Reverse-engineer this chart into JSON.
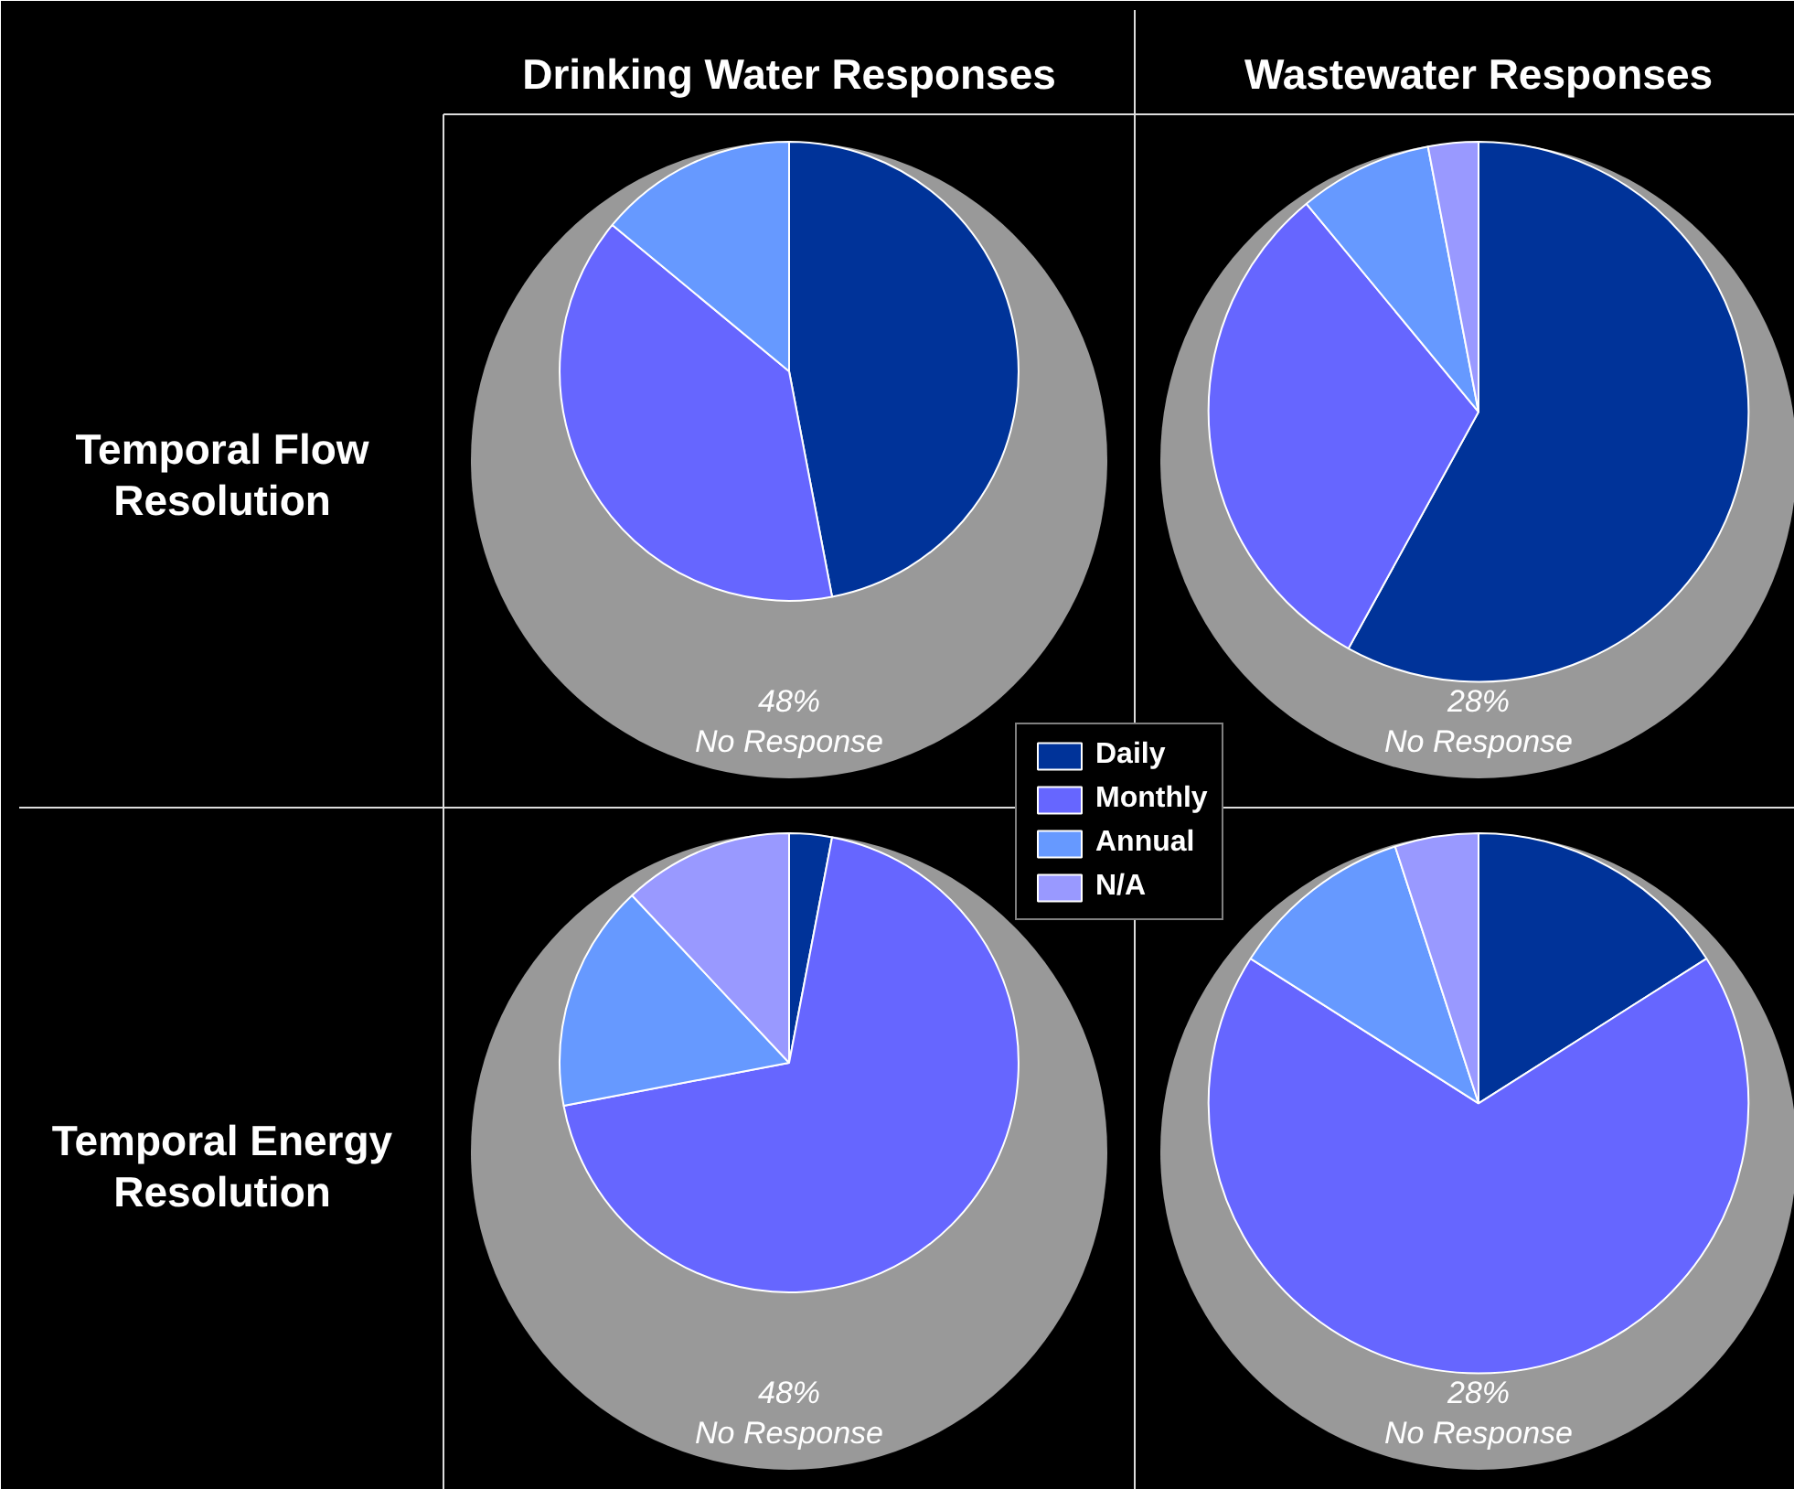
{
  "chart_data": [
    {
      "type": "pie",
      "title": "Drinking Water Responses",
      "ylabel": "Temporal Flow Resolution",
      "categories": [
        null,
        null,
        null
      ],
      "values": [
        47,
        39,
        14
      ],
      "colors": [
        "#003399",
        "#6666ff",
        "#6699ff"
      ],
      "annotations": [
        "48%",
        "No Response"
      ]
    },
    {
      "type": "pie",
      "title": "Wastewater Responses",
      "categories": [
        "Daily",
        "Monthly",
        "Annual",
        "N/A"
      ],
      "values": [
        58,
        31,
        8,
        3
      ],
      "colors": [
        "#003399",
        "#6666ff",
        "#6699ff",
        "#9999ff"
      ],
      "annotations": [
        "28%",
        "No Response"
      ],
      "legend": "center"
    },
    {
      "type": "pie",
      "ylabel": "Temporal Energy Resolution",
      "categories": [
        null,
        null,
        null,
        null
      ],
      "values": [
        3,
        69,
        16,
        12
      ],
      "colors": [
        "#003399",
        "#6666ff",
        "#6699ff",
        "#9999ff"
      ],
      "annotations": [
        "48%",
        "No Response"
      ]
    },
    {
      "type": "pie",
      "categories": [
        null,
        null,
        null,
        null
      ],
      "values": [
        16,
        68,
        11,
        5
      ],
      "colors": [
        "#003399",
        "#6666ff",
        "#6699ff",
        "#9999ff"
      ],
      "annotations": [
        "28%",
        "No Response"
      ]
    }
  ]
}
